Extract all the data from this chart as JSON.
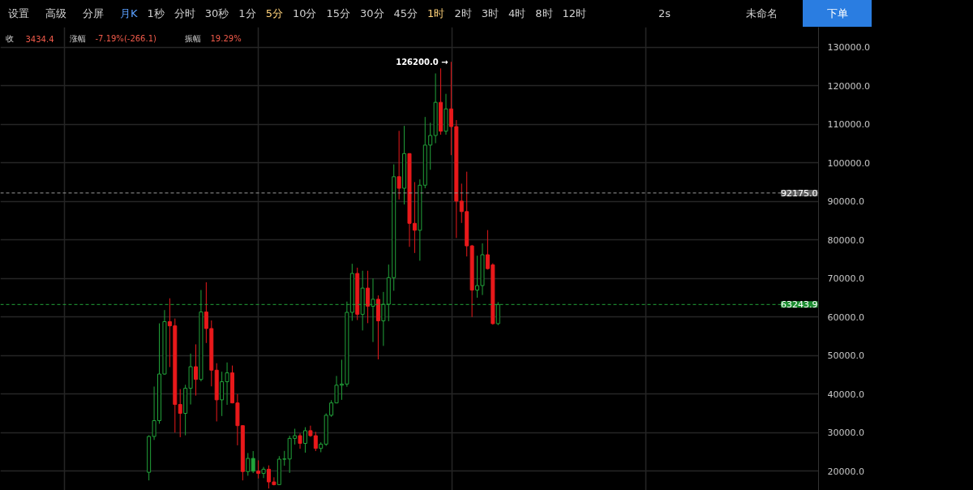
{
  "chart_data": {
    "type": "candlestick",
    "categories": [
      null,
      null,
      null,
      null,
      null,
      null,
      null,
      null,
      null,
      null,
      null,
      null,
      null,
      null,
      null,
      null,
      null,
      null,
      null,
      null,
      null,
      null,
      null,
      null,
      null,
      null,
      null,
      null,
      null,
      null,
      null,
      null,
      null,
      null,
      null,
      null,
      null,
      null,
      null,
      null,
      null,
      null,
      null,
      null,
      null,
      null,
      null,
      null,
      null,
      null,
      null,
      null,
      null,
      null,
      null,
      null,
      null,
      null,
      null,
      null,
      null,
      null,
      null,
      null,
      null,
      null,
      null,
      null,
      null,
      null,
      null,
      null,
      null,
      null,
      null,
      null,
      null,
      null,
      null,
      null,
      null,
      null,
      null,
      null,
      null,
      null,
      null,
      null,
      null,
      null,
      null,
      null,
      null,
      null,
      null,
      null,
      null,
      null,
      null,
      null,
      null,
      null,
      null,
      null,
      null,
      null,
      null,
      null,
      null,
      null,
      null,
      null,
      null,
      null,
      null,
      null,
      null,
      null,
      null,
      null,
      null,
      null,
      null,
      null,
      null,
      null,
      null,
      null,
      null,
      null,
      null,
      null,
      null,
      null,
      null,
      null,
      null,
      null,
      null,
      null,
      null,
      null,
      null,
      null,
      null,
      null,
      null,
      null,
      null,
      null,
      null,
      null,
      null,
      null,
      null,
      null,
      null
    ],
    "ohlc": [
      null,
      null,
      null,
      null,
      null,
      null,
      null,
      null,
      null,
      null,
      null,
      null,
      null,
      null,
      null,
      null,
      null,
      null,
      null,
      null,
      null,
      null,
      null,
      null,
      null,
      null,
      null,
      null,
      [
        19700,
        29300,
        17600,
        29000
      ],
      [
        29000,
        41950,
        28100,
        33100
      ],
      [
        33100,
        58350,
        32300,
        45200
      ],
      [
        45200,
        61800,
        45000,
        58800
      ],
      [
        58800,
        64850,
        47000,
        57700
      ],
      [
        57700,
        59600,
        30000,
        37300
      ],
      [
        37300,
        41300,
        28800,
        35000
      ],
      [
        35000,
        42400,
        29300,
        41500
      ],
      [
        41500,
        50500,
        37300,
        47100
      ],
      [
        47100,
        52900,
        39600,
        43800
      ],
      [
        43800,
        67000,
        43300,
        61300
      ],
      [
        61300,
        69000,
        53250,
        57000
      ],
      [
        57000,
        59100,
        42000,
        46200
      ],
      [
        46200,
        48000,
        32900,
        38500
      ],
      [
        38500,
        45800,
        34300,
        43200
      ],
      [
        43200,
        48200,
        37200,
        45500
      ],
      [
        45500,
        47400,
        37600,
        37700
      ],
      [
        37700,
        40000,
        26700,
        31800
      ],
      [
        31800,
        31900,
        17600,
        19900
      ],
      [
        19900,
        24700,
        18800,
        23300
      ],
      [
        23300,
        25200,
        19500,
        20000
      ],
      [
        20000,
        22800,
        18100,
        19400
      ],
      [
        19400,
        21100,
        18200,
        20500
      ],
      [
        20500,
        21500,
        15500,
        17200
      ],
      [
        17200,
        18400,
        16300,
        16500
      ],
      [
        16500,
        23900,
        16500,
        23100
      ],
      [
        23100,
        25250,
        21400,
        23150
      ],
      [
        23150,
        29200,
        19550,
        28500
      ],
      [
        28500,
        31000,
        26900,
        29200
      ],
      [
        29200,
        29800,
        25800,
        27200
      ],
      [
        27200,
        31400,
        24800,
        30500
      ],
      [
        30500,
        31800,
        28900,
        29200
      ],
      [
        29200,
        30200,
        25200,
        25900
      ],
      [
        25900,
        27500,
        24900,
        27000
      ],
      [
        27000,
        35000,
        26550,
        34500
      ],
      [
        34500,
        38400,
        34100,
        37700
      ],
      [
        37700,
        44700,
        37600,
        42300
      ],
      [
        42300,
        48900,
        38500,
        42600
      ],
      [
        42600,
        64000,
        41900,
        61200
      ],
      [
        61200,
        73800,
        59000,
        71300
      ],
      [
        71300,
        72800,
        59200,
        60700
      ],
      [
        60700,
        72000,
        56500,
        67500
      ],
      [
        67500,
        72000,
        58400,
        62800
      ],
      [
        62800,
        70000,
        53500,
        64600
      ],
      [
        64600,
        65600,
        49000,
        59000
      ],
      [
        59000,
        66500,
        52500,
        63300
      ],
      [
        63300,
        73600,
        58900,
        70200
      ],
      [
        70200,
        99600,
        66800,
        96400
      ],
      [
        96400,
        108300,
        90500,
        93400
      ],
      [
        93400,
        109600,
        89200,
        102400
      ],
      [
        102400,
        102500,
        78200,
        84300
      ],
      [
        84300,
        95000,
        76600,
        82500
      ],
      [
        82500,
        95700,
        74600,
        94200
      ],
      [
        94200,
        111900,
        93400,
        104600
      ],
      [
        104600,
        110400,
        98200,
        107100
      ],
      [
        107100,
        123200,
        105100,
        115700
      ],
      [
        115700,
        124500,
        107300,
        108200
      ],
      [
        108200,
        117900,
        107300,
        114000
      ],
      [
        114000,
        126200,
        102000,
        109400
      ],
      [
        109400,
        111100,
        80500,
        90070
      ],
      [
        90070,
        94600,
        84400,
        87350
      ],
      [
        87350,
        97700,
        75700,
        78450
      ],
      [
        78450,
        78700,
        60000,
        66970
      ],
      [
        66970,
        75900,
        65000,
        68150
      ],
      [
        68150,
        79100,
        65700,
        76150
      ],
      [
        76150,
        82550,
        72300,
        72540
      ],
      [
        73510,
        73930,
        58000,
        58270
      ],
      [
        58270,
        63840,
        57900,
        63243.9
      ],
      null,
      null,
      null,
      null,
      null,
      null,
      null,
      null,
      null,
      null,
      null,
      null,
      null,
      null,
      null,
      null,
      null,
      null,
      null,
      null,
      null,
      null,
      null,
      null,
      null,
      null,
      null,
      null,
      null,
      null,
      null,
      null,
      null,
      null,
      null,
      null,
      null,
      null,
      null,
      null,
      null,
      null,
      null,
      null,
      null,
      null,
      null,
      null,
      null,
      null,
      null,
      null,
      null,
      null,
      null,
      null,
      null,
      null,
      null,
      null,
      null
    ],
    "colors": [
      null,
      null,
      null,
      null,
      null,
      null,
      null,
      null,
      null,
      null,
      null,
      null,
      null,
      null,
      null,
      null,
      null,
      null,
      null,
      null,
      null,
      null,
      null,
      null,
      null,
      null,
      null,
      null,
      "#22a33a",
      "#22a33a",
      "#22a33a",
      "#22a33a",
      "#e8191b",
      "#e8191b",
      "#e8191b",
      "#22a33a",
      "#22a33a",
      "#e8191b",
      "#22a33a",
      "#e8191b",
      "#e8191b",
      "#e8191b",
      "#22a33a",
      "#22a33a",
      "#e8191b",
      "#e8191b",
      "#e8191b",
      "#22a33a",
      "#22a33a",
      "#e8191b",
      "#22a33a",
      "#e8191b",
      "#e8191b",
      "#22a33a",
      "#22a33a",
      "#22a33a",
      "#22a33a",
      "#e8191b",
      "#22a33a",
      "#e8191b",
      "#e8191b",
      "#22a33a",
      "#22a33a",
      "#22a33a",
      "#22a33a",
      "#22a33a",
      "#22a33a",
      "#22a33a",
      "#e8191b",
      "#22a33a",
      "#e8191b",
      "#22a33a",
      "#e8191b",
      "#22a33a",
      "#22a33a",
      "#22a33a",
      "#e8191b",
      "#22a33a",
      "#e8191b",
      "#e8191b",
      "#22a33a",
      "#22a33a",
      "#22a33a",
      "#22a33a",
      "#e8191b",
      "#22a33a",
      "#e8191b",
      "#e8191b",
      "#e8191b",
      "#e8191b",
      "#e8191b",
      "#22a33a",
      "#22a33a",
      "#e8191b",
      "#e8191b",
      "#22a33a",
      null,
      null,
      null,
      null,
      null,
      null,
      null,
      null,
      null,
      null,
      null,
      null,
      null,
      null,
      null,
      null,
      null,
      null,
      null,
      null,
      null,
      null,
      null,
      null,
      null,
      null,
      null,
      null,
      null,
      null,
      null,
      null,
      null,
      null,
      null,
      null,
      null,
      null,
      null,
      null,
      null,
      null,
      null,
      null,
      null,
      null,
      null,
      null,
      null,
      null,
      null,
      null,
      null,
      null,
      null,
      null,
      null,
      null,
      null,
      null,
      null
    ],
    "ylim": [
      15000,
      135200
    ],
    "yticks": [
      {
        "value": 20000,
        "label": "20000.0"
      },
      {
        "value": 30000,
        "label": "30000.0"
      },
      {
        "value": 40000,
        "label": "40000.0"
      },
      {
        "value": 50000,
        "label": "50000.0"
      },
      {
        "value": 60000,
        "label": "60000.0"
      },
      {
        "value": 70000,
        "label": "70000.0"
      },
      {
        "value": 80000,
        "label": "80000.0"
      },
      {
        "value": 90000,
        "label": "90000.0"
      },
      {
        "value": 100000,
        "label": "100000.0"
      },
      {
        "value": 110000,
        "label": "110000.0"
      },
      {
        "value": 120000,
        "label": "120000.0"
      },
      {
        "value": 130000,
        "label": "130000.0"
      }
    ],
    "ref_lines": [
      {
        "axis": "y",
        "value": 92175.0,
        "label": "92175.0",
        "color": "#9a9a9a",
        "line_style": "dashed"
      },
      {
        "axis": "y",
        "value": 63243.9,
        "label": "63243.9",
        "color": "#22a33a",
        "line_style": "dashed"
      }
    ],
    "annotations": [
      "126200.0 →",
      "设置",
      "高级",
      "分屏",
      "月K",
      "1秒",
      "分时",
      "30秒",
      "1分",
      "5分",
      "10分",
      "15分",
      "30分",
      "45分",
      "1时",
      "2时",
      "3时",
      "4时",
      "8时",
      "12时",
      "2s",
      "未命名",
      "下单",
      "收",
      "3434.4",
      "涨幅",
      "-7.19%(-266.1)",
      "振幅",
      "19.29%"
    ],
    "grid": true,
    "tick_labels": "y"
  }
}
